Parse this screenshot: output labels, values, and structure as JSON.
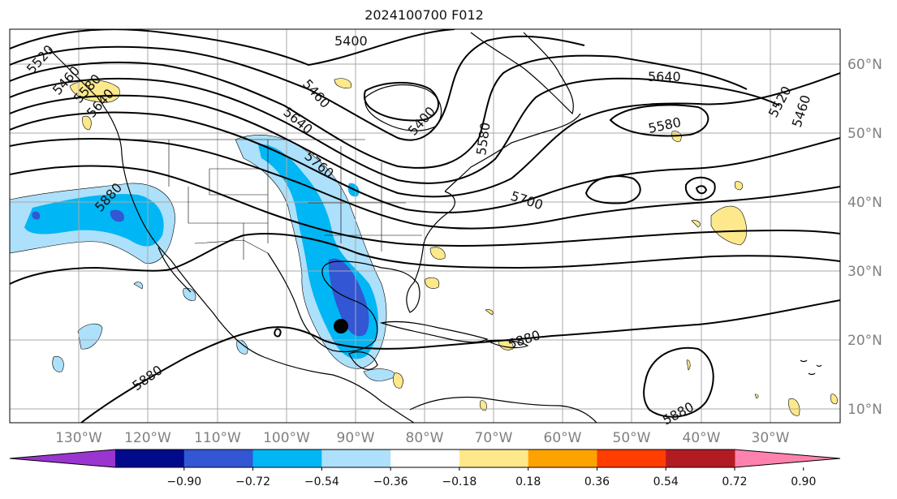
{
  "title": "2024100700 F012",
  "lat_labels": [
    "60°N",
    "50°N",
    "40°N",
    "30°N",
    "20°N",
    "10°N"
  ],
  "lon_labels": [
    "130°W",
    "120°W",
    "110°W",
    "100°W",
    "90°W",
    "80°W",
    "70°W",
    "60°W",
    "50°W",
    "40°W",
    "30°W"
  ],
  "contour_labels": [
    "5400",
    "5460",
    "5400",
    "5640",
    "5580",
    "5520",
    "5460",
    "5580",
    "5640",
    "5760",
    "5700",
    "5880",
    "5880",
    "5880",
    "5880",
    "5640",
    "5520",
    "5460",
    "5580"
  ],
  "colorbar": {
    "ticks": [
      "−0.90",
      "−0.72",
      "−0.54",
      "−0.36",
      "−0.18",
      "0.18",
      "0.36",
      "0.54",
      "0.72",
      "0.90"
    ],
    "colors": [
      "#9a35d0",
      "#000a8a",
      "#3356d4",
      "#00b6f4",
      "#ade0fa",
      "#ffffff",
      "#fde98b",
      "#fda300",
      "#ff3d00",
      "#b21b22",
      "#fe82ad"
    ]
  },
  "shading_colors": {
    "light_blue": "#ade0fa",
    "mid_blue": "#00b6f4",
    "royal_blue": "#3356d4",
    "light_yellow": "#fde98b"
  }
}
